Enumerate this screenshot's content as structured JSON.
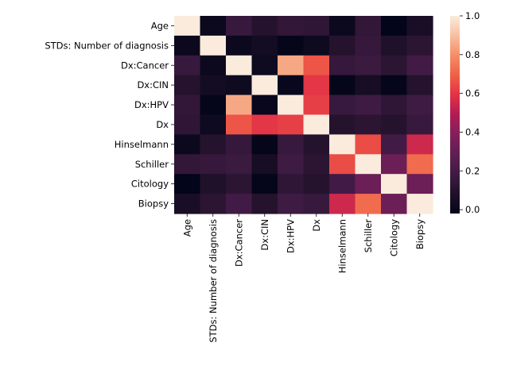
{
  "chart_data": {
    "type": "heatmap",
    "title": "",
    "xlabel": "",
    "ylabel": "",
    "rows": [
      "Age",
      "STDs: Number of diagnosis",
      "Dx:Cancer",
      "Dx:CIN",
      "Dx:HPV",
      "Dx",
      "Hinselmann",
      "Schiller",
      "Citology",
      "Biopsy"
    ],
    "cols": [
      "Age",
      "STDs: Number of diagnosis",
      "Dx:Cancer",
      "Dx:CIN",
      "Dx:HPV",
      "Dx",
      "Hinselmann",
      "Schiller",
      "Citology",
      "Biopsy"
    ],
    "values": [
      [
        1.0,
        0.01,
        0.16,
        0.1,
        0.14,
        0.13,
        0.01,
        0.14,
        -0.02,
        0.06
      ],
      [
        0.01,
        1.0,
        0.01,
        0.04,
        -0.01,
        0.02,
        0.1,
        0.15,
        0.08,
        0.12
      ],
      [
        0.16,
        0.01,
        1.0,
        0.02,
        0.85,
        0.67,
        0.15,
        0.17,
        0.12,
        0.19
      ],
      [
        0.1,
        0.04,
        0.02,
        1.0,
        0.0,
        0.6,
        -0.01,
        0.05,
        -0.01,
        0.1
      ],
      [
        0.14,
        -0.01,
        0.85,
        0.0,
        1.0,
        0.62,
        0.16,
        0.18,
        0.13,
        0.18
      ],
      [
        0.13,
        0.02,
        0.67,
        0.6,
        0.62,
        1.0,
        0.1,
        0.12,
        0.1,
        0.16
      ],
      [
        0.01,
        0.1,
        0.15,
        -0.01,
        0.16,
        0.1,
        1.0,
        0.65,
        0.19,
        0.55
      ],
      [
        0.14,
        0.15,
        0.17,
        0.05,
        0.18,
        0.12,
        0.65,
        1.0,
        0.32,
        0.72
      ],
      [
        -0.02,
        0.08,
        0.12,
        -0.01,
        0.13,
        0.1,
        0.19,
        0.32,
        1.0,
        0.32
      ],
      [
        0.06,
        0.12,
        0.19,
        0.1,
        0.18,
        0.16,
        0.55,
        0.72,
        0.32,
        1.0
      ]
    ],
    "colorbar": {
      "min": -0.02,
      "max": 1.0,
      "ticks": [
        0.0,
        0.2,
        0.4,
        0.6,
        0.8,
        1.0
      ],
      "tick_labels": [
        "0.0",
        "0.2",
        "0.4",
        "0.6",
        "0.8",
        "1.0"
      ]
    },
    "colormap": "rocket",
    "grid": false
  }
}
